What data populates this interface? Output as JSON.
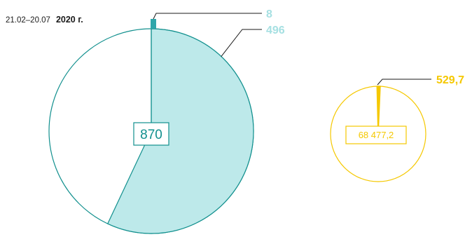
{
  "header": {
    "period": "21.02–20.07",
    "year": "2020 г."
  },
  "chart_data": [
    {
      "type": "pie",
      "total_label": "870",
      "total": 870,
      "slices": [
        {
          "value": 8,
          "label": "8",
          "color": "#2fa6aa"
        },
        {
          "value": 496,
          "label": "496",
          "color": "#bde9ea"
        },
        {
          "value": 366,
          "label": "",
          "color": "#ffffff"
        }
      ],
      "outline_color": "#12908e"
    },
    {
      "type": "pie",
      "total_label": "68 477,2",
      "total": 68477.2,
      "slices": [
        {
          "value": 529.7,
          "label": "529,7",
          "color": "#f5c800"
        }
      ],
      "outline_color": "#f5c800"
    }
  ],
  "colors": {
    "teal_dark": "#12908e",
    "teal_light": "#bde9ea",
    "teal_text": "#a6e0e2",
    "teal_mid": "#2fa6aa",
    "yellow": "#f5c800",
    "callout_line": "#1a1a1a"
  }
}
